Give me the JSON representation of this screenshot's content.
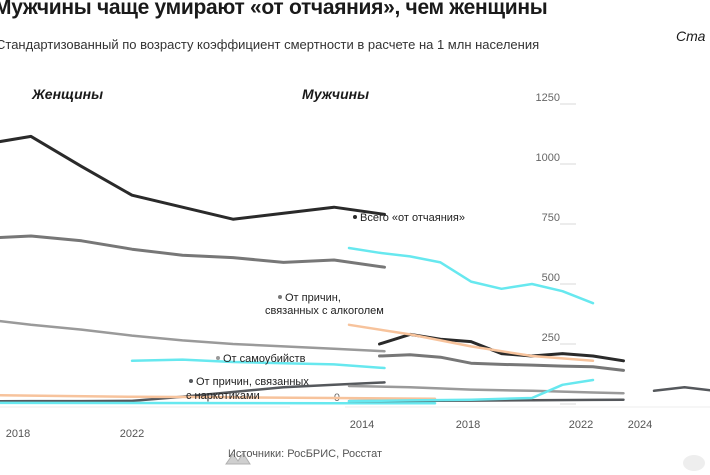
{
  "title": "Мужчины чаще умирают «от отчаяния», чем женщины",
  "title_right": "Ста",
  "subtitle": "Стандартизованный по возрасту коэффициент смертности в расчете на 1 млн населения",
  "source": "Источники: РосБРИС, Росстат",
  "colors": {
    "total": "#2a2a2a",
    "alcohol": "#777777",
    "suicide": "#9a9a9a",
    "drugs": "#55585c",
    "cyan": "#67e8ef",
    "peach": "#f7c39c",
    "icon": "#e8e8e8"
  },
  "chart_data": [
    {
      "panel": "Женщины",
      "type": "line",
      "x_ticks": [
        "2018",
        "2022"
      ],
      "series": [
        {
          "name": "Всего «от отчаяния»",
          "x": [
            2014,
            2015,
            2016,
            2017,
            2018,
            2019,
            2020,
            2021,
            2022,
            2023
          ],
          "y": [
            1110,
            1080,
            1115,
            990,
            870,
            820,
            770,
            795,
            820,
            790
          ]
        },
        {
          "name": "От причин, связанных с алкоголем",
          "x": [
            2014,
            2015,
            2016,
            2017,
            2018,
            2019,
            2020,
            2021,
            2022,
            2023
          ],
          "y": [
            650,
            690,
            700,
            680,
            645,
            620,
            610,
            590,
            600,
            570
          ]
        },
        {
          "name": "От самоубийств",
          "x": [
            2014,
            2015,
            2016,
            2017,
            2018,
            2019,
            2020,
            2021,
            2022,
            2023
          ],
          "y": [
            380,
            355,
            330,
            310,
            285,
            265,
            250,
            240,
            230,
            220
          ]
        },
        {
          "name": "От причин, связанных с наркотиками",
          "x": [
            2014,
            2015,
            2016,
            2017,
            2018,
            2019,
            2020,
            2021,
            2022,
            2023
          ],
          "y": [
            10,
            11,
            12,
            12,
            13,
            30,
            50,
            70,
            80,
            90
          ]
        },
        {
          "name": "cyan",
          "x": [
            2018,
            2019,
            2020,
            2021,
            2022,
            2023
          ],
          "y": [
            180,
            185,
            175,
            170,
            165,
            150
          ]
        },
        {
          "name": "peach",
          "x": [
            2014,
            2016,
            2018,
            2020,
            2022,
            2024
          ],
          "y": [
            40,
            35,
            30,
            28,
            25,
            22
          ]
        },
        {
          "name": "cyan-low",
          "x": [
            2014,
            2018,
            2022,
            2024
          ],
          "y": [
            5,
            4,
            3,
            3
          ]
        }
      ]
    },
    {
      "panel": "Мужчины",
      "type": "line",
      "x_ticks": [
        "2014",
        "2018",
        "2022",
        "2024"
      ],
      "yticks": [
        "0",
        "250",
        "500",
        "750",
        "1000",
        "1250"
      ],
      "ylim": [
        0,
        1250
      ],
      "series": [
        {
          "name": "Всего «от отчаяния»",
          "x": [
            2015,
            2016,
            2017,
            2018,
            2019,
            2020,
            2021,
            2022,
            2023
          ],
          "y": [
            250,
            290,
            270,
            260,
            210,
            200,
            210,
            200,
            180
          ]
        },
        {
          "name": "От причин, связанных с алкоголем",
          "x": [
            2015,
            2016,
            2017,
            2018,
            2019,
            2020,
            2021,
            2022,
            2023
          ],
          "y": [
            200,
            205,
            195,
            170,
            165,
            162,
            158,
            155,
            140
          ]
        },
        {
          "name": "От самоубийств",
          "x": [
            2014,
            2016,
            2018,
            2020,
            2022,
            2023
          ],
          "y": [
            75,
            70,
            60,
            55,
            48,
            45
          ]
        },
        {
          "name": "От причин, связанных с наркотиками",
          "x": [
            2014,
            2016,
            2018,
            2020,
            2022,
            2023
          ],
          "y": [
            12,
            13,
            14,
            16,
            17,
            18
          ]
        },
        {
          "name": "cyan",
          "x": [
            2014,
            2015,
            2016,
            2017,
            2018,
            2019,
            2020,
            2021,
            2022
          ],
          "y": [
            650,
            630,
            615,
            590,
            510,
            480,
            500,
            470,
            420
          ]
        },
        {
          "name": "peach",
          "x": [
            2014,
            2016,
            2018,
            2020,
            2022
          ],
          "y": [
            330,
            290,
            240,
            200,
            180
          ]
        },
        {
          "name": "cyan-low",
          "x": [
            2014,
            2016,
            2018,
            2020,
            2021,
            2022
          ],
          "y": [
            12,
            15,
            18,
            25,
            80,
            100
          ]
        },
        {
          "name": "dark-right",
          "x": [
            2024,
            2025,
            2026
          ],
          "y": [
            55,
            70,
            55
          ]
        }
      ],
      "annotations": [
        {
          "text": "Всего «от отчаяния»"
        },
        {
          "text": "От причин,"
        },
        {
          "text": "связанных с алкоголем"
        },
        {
          "text": "От самоубийств"
        },
        {
          "text": "От причин, связанных"
        },
        {
          "text": "с наркотиками"
        }
      ]
    }
  ]
}
